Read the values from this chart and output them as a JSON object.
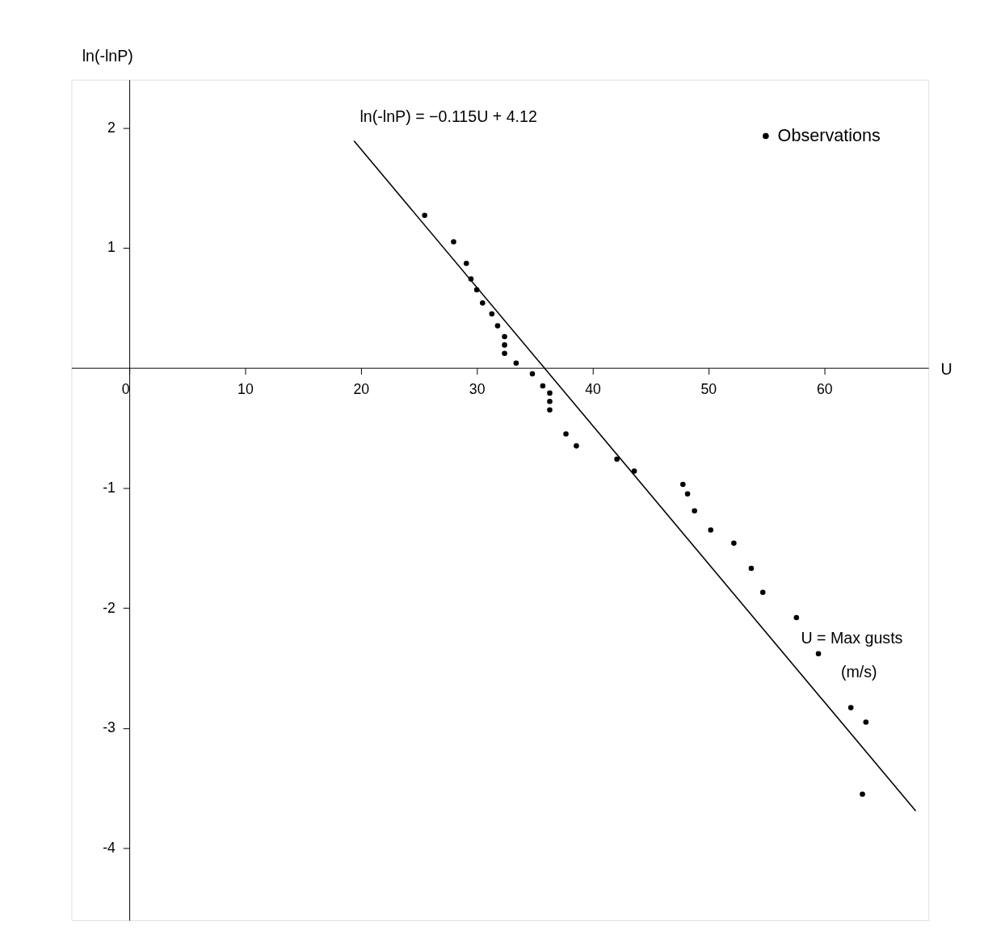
{
  "chart_data": {
    "type": "scatter",
    "xlabel": "U",
    "ylabel": "ln(-lnP)",
    "xlim": [
      -5,
      69
    ],
    "ylim": [
      -4.6,
      2.4
    ],
    "xticks": [
      0,
      10,
      20,
      30,
      40,
      50,
      60
    ],
    "yticks": [
      -4,
      -3,
      -2,
      -1,
      1,
      2
    ],
    "grid": false,
    "legend": "top right",
    "annotations": [
      "ln(-lnP) = −0.115U + 4.12",
      "U = Max gusts",
      "(m/s)"
    ],
    "series": [
      {
        "name": "Observations",
        "color": "#000000",
        "marker": "circle",
        "x": [
          25.5,
          28.0,
          29.1,
          29.5,
          30.0,
          30.5,
          31.3,
          31.8,
          32.4,
          32.4,
          32.4,
          33.4,
          34.8,
          35.7,
          36.3,
          36.3,
          36.3,
          37.7,
          38.6,
          42.1,
          43.6,
          47.8,
          48.2,
          48.8,
          50.2,
          52.2,
          53.7,
          54.7,
          57.6,
          59.5,
          62.3,
          63.6,
          63.3
        ],
        "values": [
          1.27,
          1.05,
          0.87,
          0.74,
          0.65,
          0.54,
          0.45,
          0.35,
          0.26,
          0.19,
          0.12,
          0.04,
          -0.05,
          -0.15,
          -0.21,
          -0.28,
          -0.35,
          -0.55,
          -0.65,
          -0.76,
          -0.86,
          -0.97,
          -1.05,
          -1.19,
          -1.35,
          -1.46,
          -1.67,
          -1.87,
          -2.08,
          -2.38,
          -2.83,
          -2.95,
          -3.55
        ]
      },
      {
        "color": "#000000",
        "type": "line",
        "line_style": "solid",
        "x": [
          19.4,
          67.9
        ],
        "values": [
          1.89,
          -3.69
        ]
      }
    ]
  }
}
